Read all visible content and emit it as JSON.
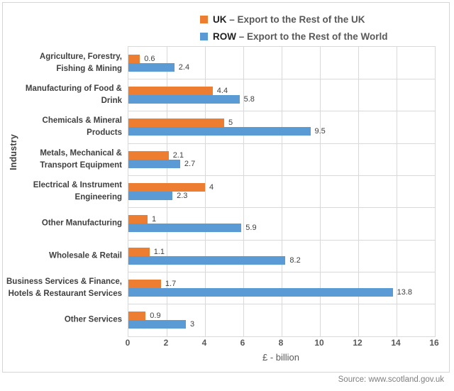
{
  "legend": {
    "items": [
      {
        "name": "UK",
        "description": "– Export to the Rest of the UK",
        "color": "#ED7D31"
      },
      {
        "name": "ROW",
        "description": "– Export to the Rest of the World",
        "color": "#5B9BD5"
      }
    ]
  },
  "chart_data": {
    "type": "bar",
    "orientation": "horizontal",
    "title": "",
    "xlabel": "£ - billion",
    "ylabel": "Industry",
    "xlim": [
      0,
      16
    ],
    "x_ticks": [
      0,
      2,
      4,
      6,
      8,
      10,
      12,
      14,
      16
    ],
    "grid": true,
    "legend_position": "top",
    "categories": [
      "Agriculture, Forestry,\nFishing & Mining",
      "Manufacturing of Food &\nDrink",
      "Chemicals & Mineral\nProducts",
      "Metals, Mechanical &\nTransport Equipment",
      "Electrical & Instrument\nEngineering",
      "Other Manufacturing",
      "Wholesale & Retail",
      "Business Services & Finance,\nHotels & Restaurant Services",
      "Other Services"
    ],
    "series": [
      {
        "name": "UK",
        "label": "UK – Export to the Rest of the UK",
        "color": "#ED7D31",
        "values": [
          0.6,
          4.4,
          5,
          2.1,
          4,
          1,
          1.1,
          1.7,
          0.9
        ]
      },
      {
        "name": "ROW",
        "label": "ROW – Export to the Rest of the World",
        "color": "#5B9BD5",
        "values": [
          2.4,
          5.8,
          9.5,
          2.7,
          2.3,
          5.9,
          8.2,
          13.8,
          3
        ]
      }
    ],
    "colors": {
      "uk_bar": "#ED7D31",
      "row_bar": "#5B9BD5",
      "gridline": "#D9D9D9",
      "data_label": "#404040",
      "axis_text": "#595959"
    }
  },
  "source": "Source: www.scotland.gov.uk"
}
